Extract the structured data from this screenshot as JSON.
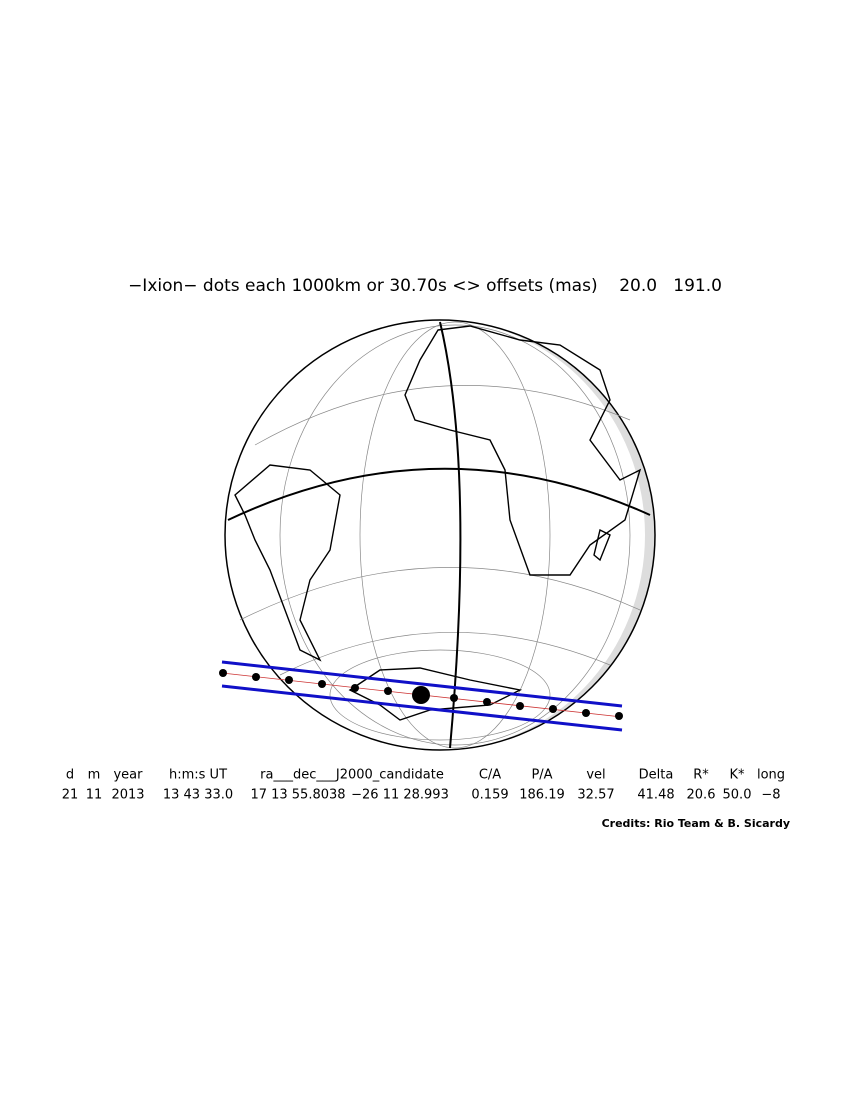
{
  "header": {
    "title": "−Ixion− dots each 1000km or 30.70s <> offsets (mas)    20.0   191.0"
  },
  "table": {
    "columns": [
      "d",
      "m",
      "year",
      "h:m:s UT",
      "ra___dec___J2000_candidate",
      "C/A",
      "P/A",
      "vel",
      "Delta",
      "R*",
      "K*",
      "long"
    ],
    "row": [
      "21",
      "11",
      "2013",
      "13 43 33.0",
      "17 13 55.8038",
      "−26 11 28.993",
      "0.159",
      "186.19",
      "32.57",
      "41.48",
      "20.6",
      "50.0",
      "−8"
    ]
  },
  "credits": "Credits: Rio Team & B. Sicardy"
}
